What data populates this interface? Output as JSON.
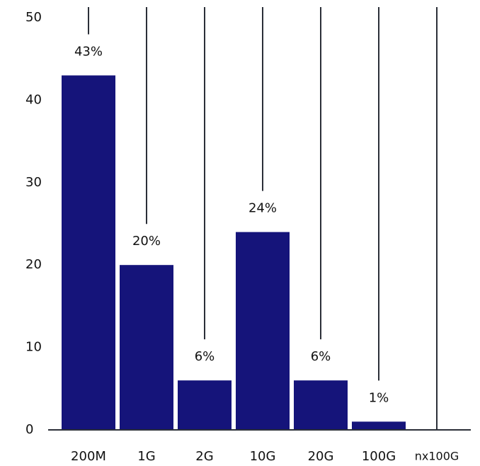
{
  "chart_data": {
    "type": "bar",
    "categories": [
      "200M",
      "1G",
      "2G",
      "10G",
      "20G",
      "100G",
      "nx100G"
    ],
    "values": [
      43,
      20,
      6,
      24,
      6,
      1,
      0
    ],
    "value_labels": [
      "43%",
      "20%",
      "6%",
      "24%",
      "6%",
      "1%",
      null
    ],
    "color": "#15147a",
    "ylim": [
      0,
      50
    ],
    "yticks": [
      0,
      10,
      20,
      30,
      40,
      50
    ],
    "grid": false
  }
}
